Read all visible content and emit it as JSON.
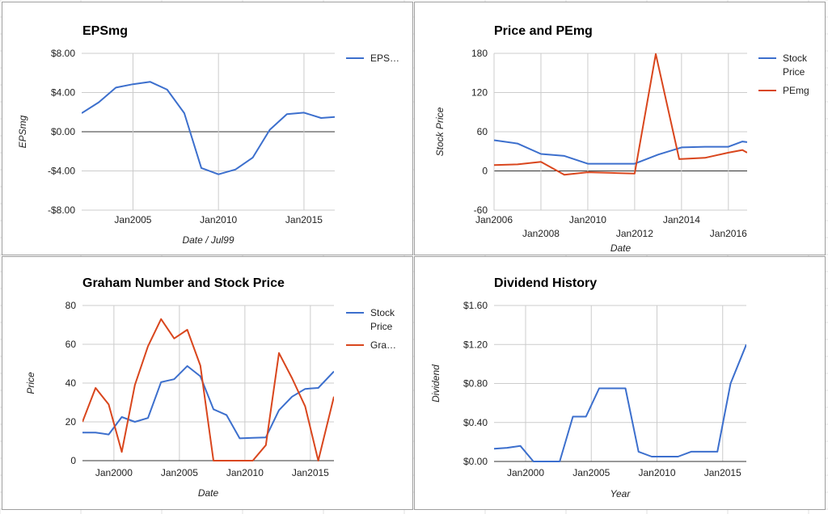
{
  "sheet": {
    "background": "#ffffff",
    "grid_color": "#e2e2e2"
  },
  "charts": [
    {
      "type": "line",
      "title": "EPSmg",
      "xlabel": "Date / Jul99",
      "ylabel": "EPSmg",
      "xlim": [
        2002.0,
        2016.8
      ],
      "ylim": [
        -8,
        8
      ],
      "yticks": [
        8,
        4,
        0,
        -4,
        -8
      ],
      "ytick_labels": [
        "$8.00",
        "$4.00",
        "$0.00",
        "-$4.00",
        "-$8.00"
      ],
      "xticks": [
        {
          "x": 2005,
          "label": "Jan2005",
          "row": 0
        },
        {
          "x": 2010,
          "label": "Jan2010",
          "row": 0
        },
        {
          "x": 2015,
          "label": "Jan2015",
          "row": 0
        }
      ],
      "series": [
        {
          "name": "EPS…",
          "color": "#3c6fcd",
          "x": [
            2002.0,
            2003.0,
            2004.0,
            2005.0,
            2006.0,
            2007.0,
            2008.0,
            2009.0,
            2010.0,
            2011.0,
            2012.0,
            2013.0,
            2014.0,
            2015.0,
            2016.0,
            2016.8
          ],
          "y": [
            1.9,
            3.0,
            4.5,
            4.85,
            5.1,
            4.3,
            1.9,
            -3.7,
            -4.35,
            -3.85,
            -2.65,
            0.2,
            1.8,
            1.95,
            1.4,
            1.5
          ]
        }
      ],
      "legend": "right"
    },
    {
      "type": "line",
      "title": "Price and PEmg",
      "xlabel": "Date",
      "ylabel": "Stock Price",
      "xlim": [
        2006.0,
        2016.8
      ],
      "ylim": [
        -60,
        180
      ],
      "yticks": [
        180,
        120,
        60,
        0,
        -60
      ],
      "ytick_labels": [
        "180",
        "120",
        "60",
        "0",
        "-60"
      ],
      "xticks": [
        {
          "x": 2006,
          "label": "Jan2006",
          "row": 0
        },
        {
          "x": 2008,
          "label": "Jan2008",
          "row": 1
        },
        {
          "x": 2010,
          "label": "Jan2010",
          "row": 0
        },
        {
          "x": 2012,
          "label": "Jan2012",
          "row": 1
        },
        {
          "x": 2014,
          "label": "Jan2014",
          "row": 0
        },
        {
          "x": 2016,
          "label": "Jan2016",
          "row": 1
        }
      ],
      "series": [
        {
          "name": "Stock Price",
          "color": "#3c6fcd",
          "x": [
            2006.0,
            2007.0,
            2008.0,
            2009.0,
            2010.0,
            2011.0,
            2012.0,
            2013.0,
            2014.0,
            2015.0,
            2016.0,
            2016.6,
            2016.8
          ],
          "y": [
            47,
            42,
            26,
            23,
            11,
            11,
            11,
            25,
            36,
            37,
            37,
            45,
            44
          ]
        },
        {
          "name": "PEmg",
          "color": "#d9461d",
          "x": [
            2006.0,
            2007.0,
            2008.0,
            2009.0,
            2010.0,
            2011.0,
            2012.0,
            2012.9,
            2013.9,
            2015.0,
            2016.0,
            2016.6,
            2016.8
          ],
          "y": [
            9,
            10,
            14,
            -6,
            -2,
            -3,
            -4,
            179,
            18,
            20,
            28,
            32,
            28
          ]
        }
      ],
      "legend": "right"
    },
    {
      "type": "line",
      "title": "Graham Number and Stock Price",
      "xlabel": "Date",
      "ylabel": "Price",
      "xlim": [
        1997.6,
        2016.8
      ],
      "ylim": [
        0,
        80
      ],
      "yticks": [
        80,
        60,
        40,
        20,
        0
      ],
      "ytick_labels": [
        "80",
        "60",
        "40",
        "20",
        "0"
      ],
      "xticks": [
        {
          "x": 2000,
          "label": "Jan2000",
          "row": 0
        },
        {
          "x": 2005,
          "label": "Jan2005",
          "row": 0
        },
        {
          "x": 2010,
          "label": "Jan2010",
          "row": 0
        },
        {
          "x": 2015,
          "label": "Jan2015",
          "row": 0
        }
      ],
      "series": [
        {
          "name": "Stock Price",
          "color": "#3c6fcd",
          "x": [
            1997.6,
            1998.6,
            1999.6,
            2000.6,
            2001.6,
            2002.6,
            2003.6,
            2004.6,
            2005.6,
            2006.6,
            2007.6,
            2008.6,
            2009.6,
            2010.6,
            2011.6,
            2012.6,
            2013.6,
            2014.6,
            2015.6,
            2016.8
          ],
          "y": [
            14.5,
            14.5,
            13.5,
            22.5,
            20,
            22,
            40.5,
            42,
            48.8,
            43.5,
            26.5,
            23.5,
            11.5,
            11.8,
            12,
            26,
            33,
            37,
            37.5,
            46
          ]
        },
        {
          "name": "Gra…",
          "color": "#d9461d",
          "x": [
            1997.6,
            1998.6,
            1999.6,
            2000.6,
            2001.6,
            2002.6,
            2003.6,
            2004.6,
            2005.6,
            2006.6,
            2007.6,
            2008.6,
            2009.6,
            2010.6,
            2011.6,
            2012.6,
            2013.6,
            2014.6,
            2015.6,
            2016.8
          ],
          "y": [
            20,
            37.5,
            29,
            4.5,
            39,
            59,
            73,
            63,
            67.5,
            49,
            0,
            0,
            0,
            0,
            8,
            55.5,
            42.5,
            28,
            0,
            33
          ]
        }
      ],
      "legend": "right"
    },
    {
      "type": "line",
      "title": "Dividend History",
      "xlabel": "Year",
      "ylabel": "Dividend",
      "xlim": [
        1997.6,
        2016.8
      ],
      "ylim": [
        0,
        1.6
      ],
      "yticks": [
        1.6,
        1.2,
        0.8,
        0.4,
        0
      ],
      "ytick_labels": [
        "$1.60",
        "$1.20",
        "$0.80",
        "$0.40",
        "$0.00"
      ],
      "xticks": [
        {
          "x": 2000,
          "label": "Jan2000",
          "row": 0
        },
        {
          "x": 2005,
          "label": "Jan2005",
          "row": 0
        },
        {
          "x": 2010,
          "label": "Jan2010",
          "row": 0
        },
        {
          "x": 2015,
          "label": "Jan2015",
          "row": 0
        }
      ],
      "series": [
        {
          "name": "Dividend",
          "color": "#3c6fcd",
          "x": [
            1997.6,
            1998.6,
            1999.6,
            2000.6,
            2001.6,
            2002.6,
            2003.6,
            2004.6,
            2005.6,
            2006.6,
            2007.6,
            2008.6,
            2009.6,
            2010.6,
            2011.6,
            2012.6,
            2013.6,
            2014.6,
            2015.6,
            2016.8
          ],
          "y": [
            0.13,
            0.14,
            0.16,
            0.0,
            0.0,
            0.0,
            0.46,
            0.46,
            0.75,
            0.75,
            0.75,
            0.1,
            0.05,
            0.05,
            0.05,
            0.1,
            0.1,
            0.1,
            0.8,
            1.2
          ]
        }
      ],
      "legend": "none"
    }
  ]
}
